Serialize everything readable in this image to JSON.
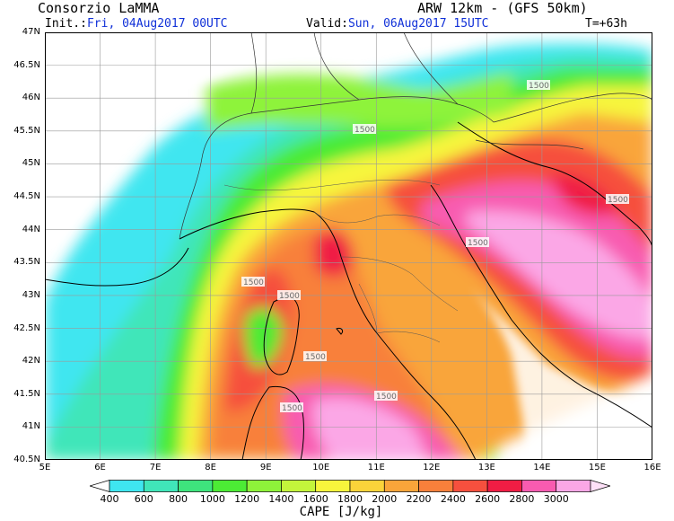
{
  "header": {
    "org": "Consorzio LaMMA",
    "model": "ARW 12km  - (GFS 50km)",
    "init_label": "Init.:",
    "init_value": "Fri, 04Aug2017 00UTC",
    "valid_label": "Valid:",
    "valid_value": "Sun, 06Aug2017 15UTC",
    "forecast_step": "T=+63h"
  },
  "map": {
    "lat_labels": [
      "47N",
      "46.5N",
      "46N",
      "45.5N",
      "45N",
      "44.5N",
      "44N",
      "43.5N",
      "43N",
      "42.5N",
      "42N",
      "41.5N",
      "41N",
      "40.5N"
    ],
    "lon_labels": [
      "5E",
      "6E",
      "7E",
      "8E",
      "9E",
      "10E",
      "11E",
      "12E",
      "13E",
      "14E",
      "15E",
      "16E"
    ],
    "contour_label": "1500",
    "sea_color": "#ffffff",
    "coast_color": "#000000"
  },
  "colorbar": {
    "title": "CAPE [J/kg]",
    "levels": [
      "400",
      "600",
      "800",
      "1000",
      "1200",
      "1400",
      "1600",
      "1800",
      "2000",
      "2200",
      "2400",
      "2600",
      "2800",
      "3000"
    ],
    "colors": [
      "#ffffff",
      "#3fe6f0",
      "#40e6b9",
      "#3ee47d",
      "#4ceb35",
      "#8ef33a",
      "#c3f53b",
      "#f7f53c",
      "#fbd33a",
      "#f9a53a",
      "#f8803b",
      "#f6503e",
      "#f01d44",
      "#f85bb0",
      "#fba7e6",
      "#fde0f7"
    ]
  }
}
